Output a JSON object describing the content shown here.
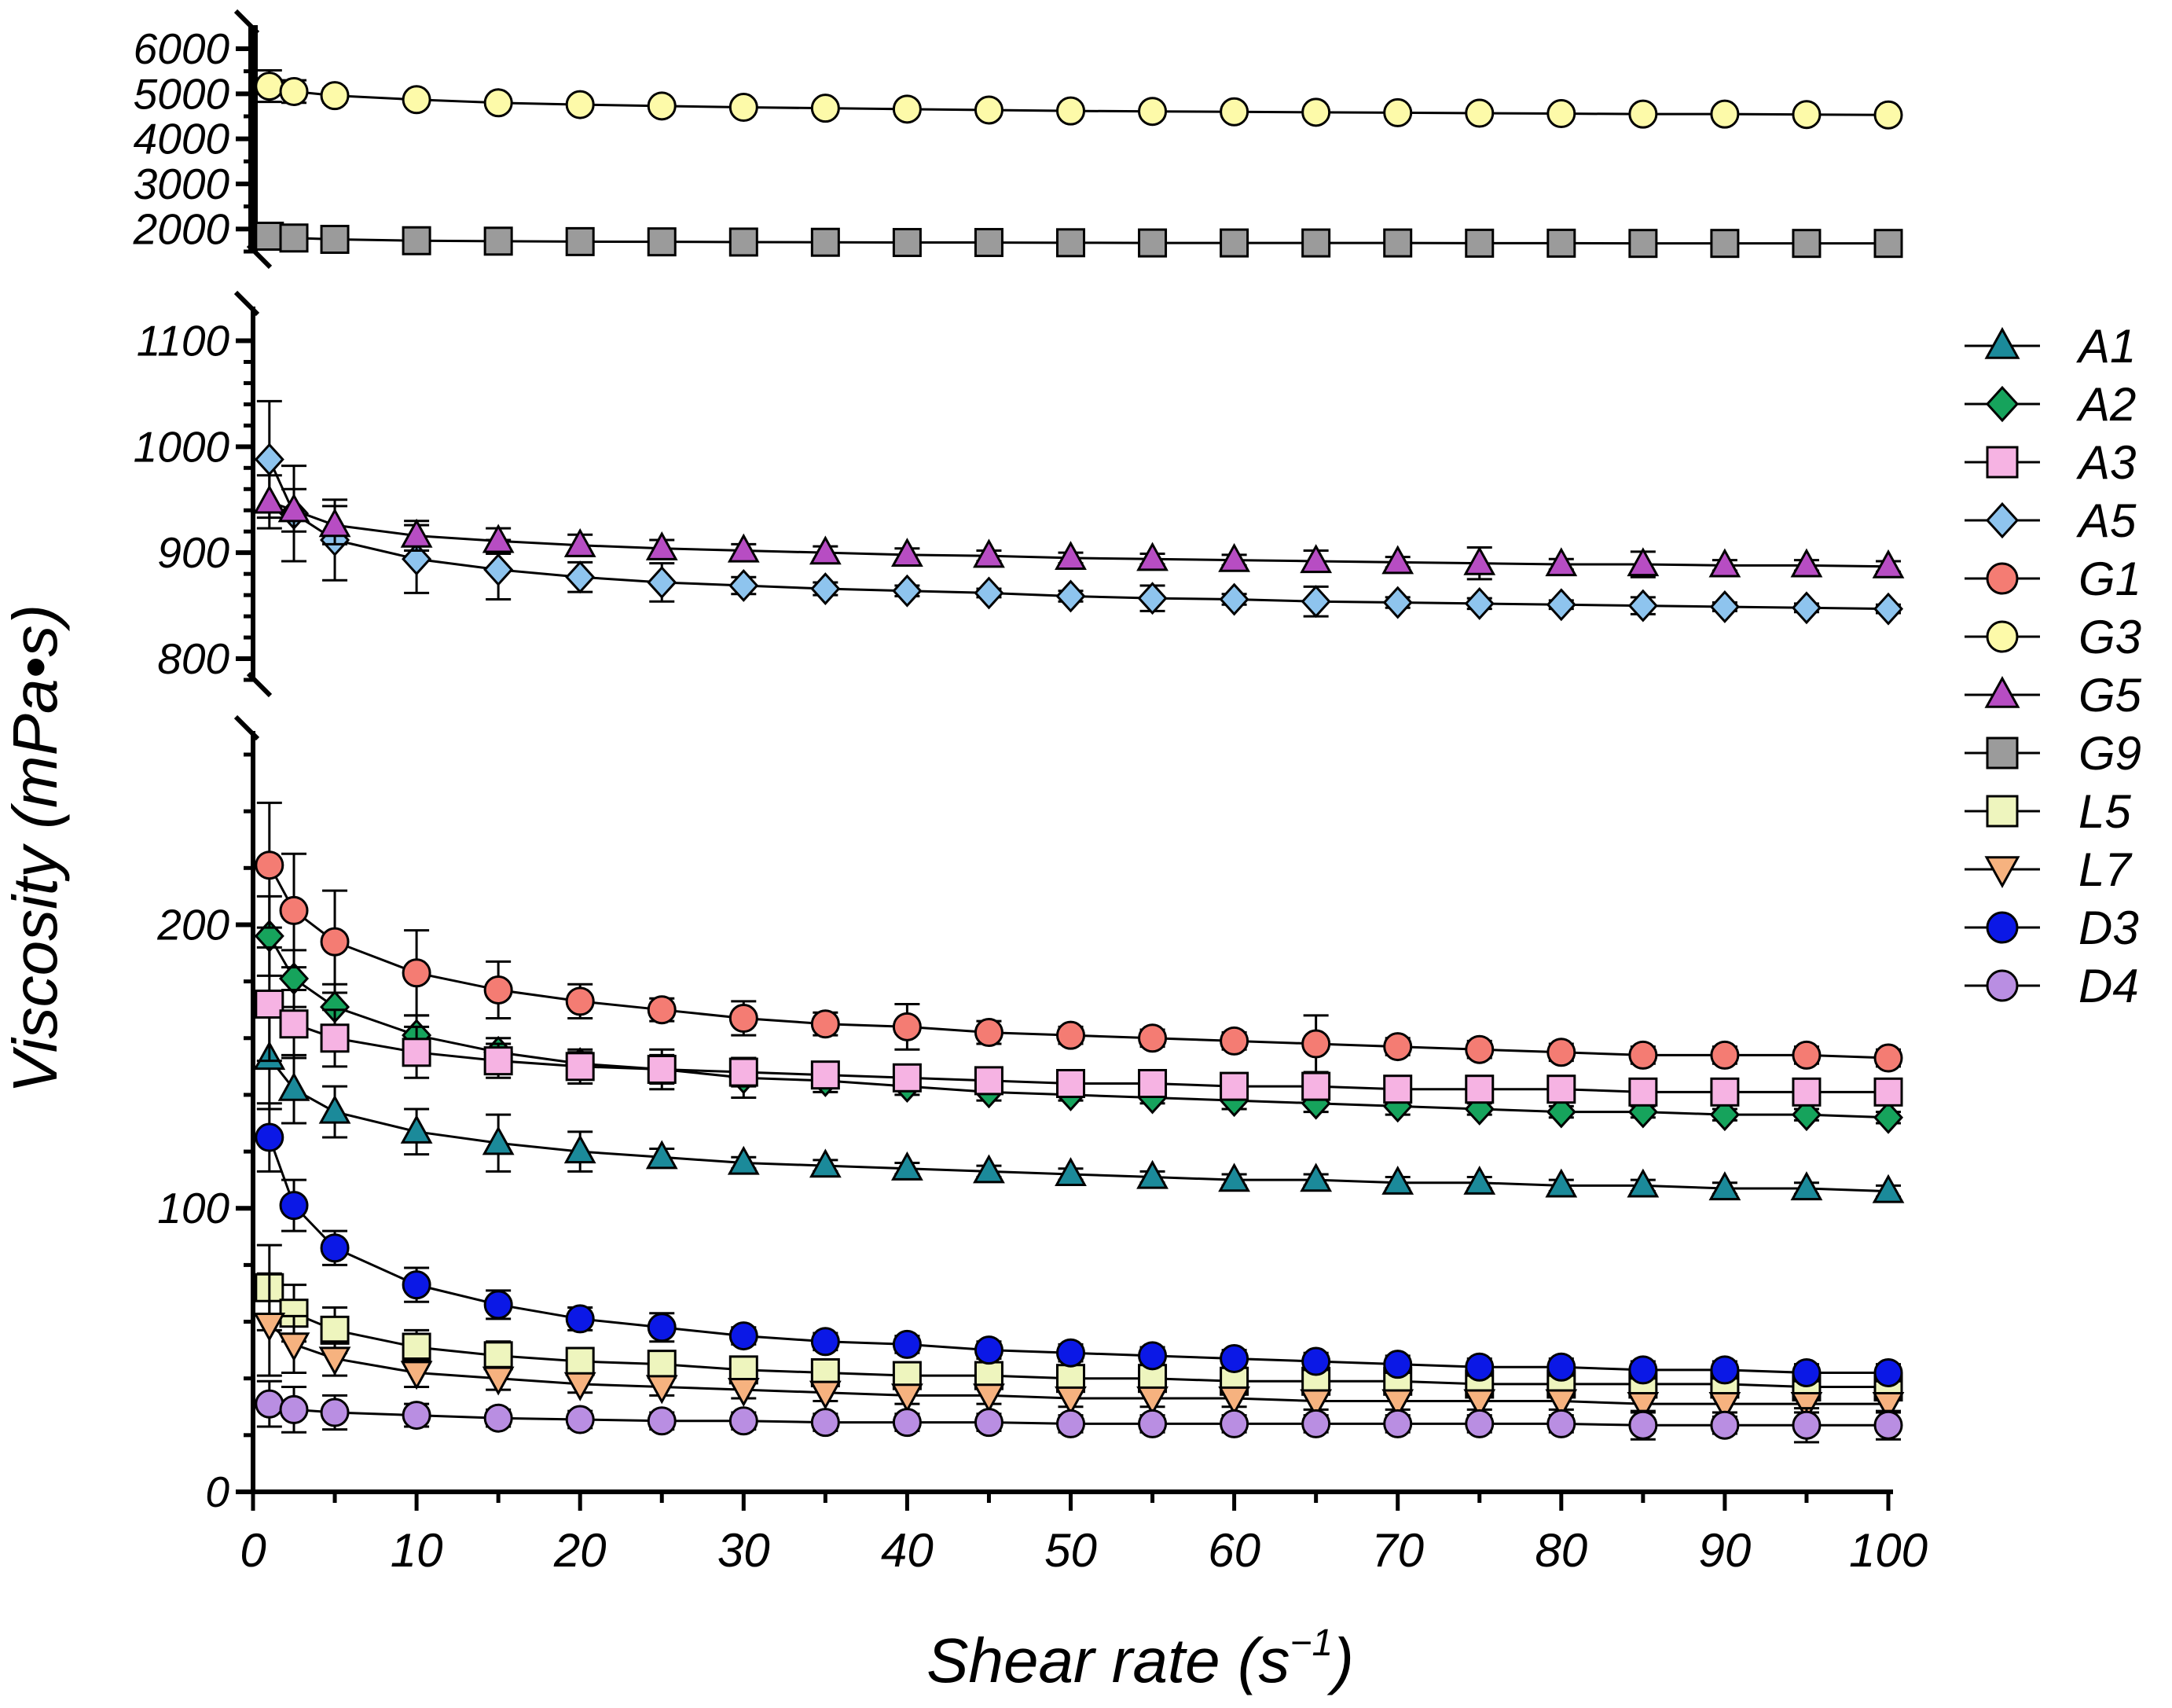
{
  "chart_data": {
    "type": "line",
    "xlabel": "Shear rate (s",
    "xlabel_sup": "−1",
    "xlabel_close": ")",
    "ylabel": "Viscosity (mPa•s)",
    "xlim": [
      0,
      100
    ],
    "x_ticks": [
      0,
      10,
      20,
      30,
      40,
      50,
      60,
      70,
      80,
      90,
      100
    ],
    "x": [
      1,
      2.5,
      5,
      10,
      15,
      20,
      25,
      30,
      35,
      40,
      45,
      50,
      55,
      60,
      65,
      70,
      75,
      80,
      85,
      90,
      95,
      100
    ],
    "y_axis_breaks": true,
    "y_segments": [
      {
        "ylim": [
          1500,
          6000
        ],
        "ticks": [
          2000,
          3000,
          4000,
          5000,
          6000
        ]
      },
      {
        "ylim": [
          780,
          1110
        ],
        "ticks": [
          800,
          900,
          1000,
          1100
        ]
      },
      {
        "ylim": [
          0,
          260
        ],
        "ticks": [
          0,
          100,
          200
        ]
      }
    ],
    "legend_position": "right",
    "grid": false,
    "series": [
      {
        "name": "A1",
        "marker": "triangle-up",
        "color": "#1b8a9a",
        "segment": 2,
        "values": [
          153,
          142,
          134,
          127,
          123,
          120,
          118,
          116,
          115,
          114,
          113,
          112,
          111,
          110,
          110,
          109,
          109,
          108,
          108,
          107,
          107,
          106
        ],
        "errors": [
          18,
          12,
          9,
          8,
          10,
          7,
          3,
          2,
          2,
          2,
          2,
          2,
          2,
          2,
          2,
          2,
          2,
          2,
          2,
          2,
          2,
          2
        ]
      },
      {
        "name": "A2",
        "marker": "diamond",
        "color": "#16a35c",
        "segment": 2,
        "values": [
          196,
          181,
          171,
          161,
          155,
          151,
          149,
          146,
          145,
          143,
          141,
          140,
          139,
          138,
          137,
          136,
          135,
          134,
          134,
          133,
          133,
          132
        ],
        "errors": [
          14,
          10,
          8,
          7,
          5,
          4,
          7,
          7,
          4,
          3,
          3,
          2,
          2,
          3,
          3,
          3,
          2,
          2,
          2,
          2,
          2,
          2
        ]
      },
      {
        "name": "A3",
        "marker": "square",
        "color": "#f6b3e3",
        "segment": 2,
        "values": [
          172,
          165,
          160,
          155,
          152,
          150,
          149,
          148,
          147,
          146,
          145,
          144,
          144,
          143,
          143,
          142,
          142,
          142,
          141,
          141,
          141,
          141
        ],
        "errors": [
          20,
          12,
          10,
          9,
          6,
          6,
          5,
          5,
          4,
          4,
          4,
          3,
          3,
          3,
          3,
          3,
          3,
          3,
          3,
          3,
          3,
          3
        ]
      },
      {
        "name": "A5",
        "marker": "diamond",
        "color": "#8ec4ee",
        "segment": 1,
        "values": [
          988,
          937,
          912,
          894,
          884,
          877,
          872,
          869,
          866,
          864,
          862,
          859,
          857,
          856,
          854,
          853,
          852,
          851,
          850,
          849,
          848,
          847
        ],
        "errors": [
          55,
          45,
          38,
          32,
          28,
          14,
          18,
          8,
          6,
          5,
          4,
          5,
          12,
          5,
          14,
          5,
          5,
          4,
          8,
          4,
          4,
          4
        ]
      },
      {
        "name": "G1",
        "marker": "circle",
        "color": "#f47c73",
        "segment": 2,
        "values": [
          221,
          205,
          194,
          183,
          177,
          173,
          170,
          167,
          165,
          164,
          162,
          161,
          160,
          159,
          158,
          157,
          156,
          155,
          154,
          154,
          154,
          153
        ],
        "errors": [
          22,
          20,
          18,
          15,
          10,
          6,
          4,
          6,
          4,
          8,
          4,
          3,
          3,
          3,
          10,
          3,
          3,
          3,
          3,
          3,
          3,
          3
        ]
      },
      {
        "name": "G3",
        "marker": "circle",
        "color": "#fdfaa9",
        "segment": 0,
        "values": [
          5170,
          5050,
          4960,
          4870,
          4800,
          4760,
          4730,
          4700,
          4680,
          4660,
          4640,
          4620,
          4610,
          4600,
          4590,
          4580,
          4570,
          4560,
          4550,
          4550,
          4540,
          4530
        ],
        "errors": [
          350,
          250,
          150,
          100,
          80,
          60,
          50,
          40,
          40,
          40,
          40,
          40,
          40,
          40,
          40,
          40,
          40,
          40,
          40,
          40,
          40,
          40
        ]
      },
      {
        "name": "G5",
        "marker": "triangle-up",
        "color": "#b74dc3",
        "segment": 1,
        "values": [
          948,
          940,
          926,
          916,
          911,
          907,
          904,
          902,
          900,
          898,
          897,
          895,
          894,
          893,
          892,
          891,
          890,
          889,
          889,
          888,
          888,
          887
        ],
        "errors": [
          25,
          20,
          18,
          14,
          12,
          10,
          8,
          6,
          6,
          6,
          5,
          5,
          5,
          5,
          10,
          5,
          15,
          5,
          12,
          5,
          5,
          5
        ]
      },
      {
        "name": "G9",
        "marker": "square",
        "color": "#9b9b9b",
        "segment": 0,
        "values": [
          1840,
          1800,
          1770,
          1740,
          1730,
          1720,
          1715,
          1710,
          1705,
          1700,
          1700,
          1695,
          1690,
          1690,
          1690,
          1690,
          1685,
          1685,
          1680,
          1680,
          1680,
          1680
        ],
        "errors": [
          60,
          40,
          30,
          20,
          20,
          20,
          20,
          20,
          20,
          20,
          20,
          20,
          20,
          20,
          20,
          20,
          20,
          20,
          20,
          20,
          20,
          20
        ]
      },
      {
        "name": "L5",
        "marker": "square",
        "color": "#eef5be",
        "segment": 2,
        "values": [
          72,
          63,
          57,
          51,
          48,
          46,
          45,
          43,
          42,
          41,
          41,
          40,
          40,
          39,
          39,
          39,
          38,
          38,
          38,
          38,
          37,
          37
        ],
        "errors": [
          15,
          10,
          8,
          6,
          5,
          4,
          4,
          3,
          3,
          3,
          3,
          3,
          3,
          3,
          3,
          3,
          3,
          3,
          3,
          3,
          3,
          3
        ]
      },
      {
        "name": "L7",
        "marker": "triangle-down",
        "color": "#f6b27f",
        "segment": 2,
        "values": [
          59,
          52,
          47,
          42,
          40,
          38,
          37,
          36,
          35,
          34,
          34,
          33,
          33,
          33,
          32,
          32,
          32,
          32,
          31,
          31,
          31,
          31
        ],
        "errors": [
          18,
          10,
          6,
          5,
          4,
          3,
          3,
          3,
          3,
          3,
          3,
          3,
          3,
          3,
          3,
          3,
          3,
          3,
          3,
          3,
          3,
          3
        ]
      },
      {
        "name": "D3",
        "marker": "circle",
        "color": "#0b18e6",
        "segment": 2,
        "values": [
          125,
          101,
          86,
          73,
          66,
          61,
          58,
          55,
          53,
          52,
          50,
          49,
          48,
          47,
          46,
          45,
          44,
          44,
          43,
          43,
          42,
          42
        ],
        "errors": [
          12,
          9,
          6,
          6,
          5,
          4,
          5,
          3,
          3,
          3,
          3,
          3,
          3,
          3,
          3,
          3,
          3,
          3,
          3,
          3,
          3,
          3
        ]
      },
      {
        "name": "D4",
        "marker": "circle",
        "color": "#b98ee2",
        "segment": 2,
        "values": [
          31,
          29,
          28,
          27,
          26,
          25.5,
          25,
          25,
          24.5,
          24.5,
          24.5,
          24,
          24,
          24,
          24,
          24,
          24,
          24,
          23.5,
          23.5,
          23.5,
          23.5
        ],
        "errors": [
          8,
          8,
          6,
          4,
          3,
          3,
          3,
          3,
          3,
          3,
          3,
          3,
          3,
          3,
          3,
          3,
          3,
          3,
          5,
          3,
          6,
          5
        ]
      }
    ]
  }
}
